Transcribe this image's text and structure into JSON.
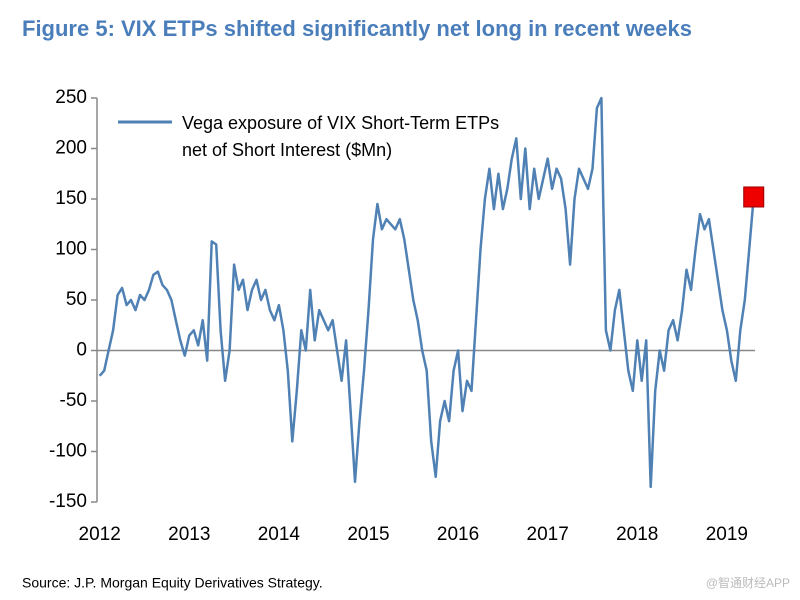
{
  "chart_data": {
    "type": "line",
    "title": "Figure 5: VIX ETPs shifted significantly net long in recent weeks",
    "source": "Source: J.P. Morgan Equity Derivatives Strategy.",
    "watermark": "@智通财经APP",
    "x": [
      2012.0,
      2012.05,
      2012.1,
      2012.15,
      2012.2,
      2012.25,
      2012.3,
      2012.35,
      2012.4,
      2012.45,
      2012.5,
      2012.55,
      2012.6,
      2012.65,
      2012.7,
      2012.75,
      2012.8,
      2012.85,
      2012.9,
      2012.95,
      2013.0,
      2013.05,
      2013.1,
      2013.15,
      2013.2,
      2013.25,
      2013.3,
      2013.35,
      2013.4,
      2013.45,
      2013.5,
      2013.55,
      2013.6,
      2013.65,
      2013.7,
      2013.75,
      2013.8,
      2013.85,
      2013.9,
      2013.95,
      2014.0,
      2014.05,
      2014.1,
      2014.15,
      2014.2,
      2014.25,
      2014.3,
      2014.35,
      2014.4,
      2014.45,
      2014.5,
      2014.55,
      2014.6,
      2014.65,
      2014.7,
      2014.75,
      2014.8,
      2014.85,
      2014.9,
      2014.95,
      2015.0,
      2015.05,
      2015.1,
      2015.15,
      2015.2,
      2015.25,
      2015.3,
      2015.35,
      2015.4,
      2015.45,
      2015.5,
      2015.55,
      2015.6,
      2015.65,
      2015.7,
      2015.75,
      2015.8,
      2015.85,
      2015.9,
      2015.95,
      2016.0,
      2016.05,
      2016.1,
      2016.15,
      2016.2,
      2016.25,
      2016.3,
      2016.35,
      2016.4,
      2016.45,
      2016.5,
      2016.55,
      2016.6,
      2016.65,
      2016.7,
      2016.75,
      2016.8,
      2016.85,
      2016.9,
      2016.95,
      2017.0,
      2017.05,
      2017.1,
      2017.15,
      2017.2,
      2017.25,
      2017.3,
      2017.35,
      2017.4,
      2017.45,
      2017.5,
      2017.55,
      2017.6,
      2017.62,
      2017.65,
      2017.7,
      2017.75,
      2017.8,
      2017.85,
      2017.9,
      2017.95,
      2018.0,
      2018.05,
      2018.1,
      2018.15,
      2018.2,
      2018.25,
      2018.3,
      2018.35,
      2018.4,
      2018.45,
      2018.5,
      2018.55,
      2018.6,
      2018.65,
      2018.7,
      2018.75,
      2018.8,
      2018.85,
      2018.9,
      2018.95,
      2019.0,
      2019.05,
      2019.1,
      2019.15,
      2019.2,
      2019.25,
      2019.3
    ],
    "series": [
      {
        "name": "Vega exposure of VIX Short-Term ETPs net of Short Interest ($Mn)",
        "color": "#4f81b4",
        "values": [
          -25,
          -20,
          0,
          20,
          55,
          62,
          45,
          50,
          40,
          55,
          50,
          60,
          75,
          78,
          65,
          60,
          50,
          30,
          10,
          -5,
          15,
          20,
          5,
          30,
          -10,
          108,
          105,
          20,
          -30,
          0,
          85,
          60,
          70,
          40,
          60,
          70,
          50,
          60,
          40,
          30,
          45,
          20,
          -20,
          -90,
          -40,
          20,
          0,
          60,
          10,
          40,
          30,
          20,
          30,
          0,
          -30,
          10,
          -60,
          -130,
          -70,
          -20,
          40,
          110,
          145,
          120,
          130,
          125,
          120,
          130,
          110,
          80,
          50,
          30,
          0,
          -20,
          -90,
          -125,
          -70,
          -50,
          -70,
          -20,
          0,
          -60,
          -30,
          -40,
          30,
          100,
          150,
          180,
          140,
          175,
          140,
          160,
          190,
          210,
          150,
          200,
          140,
          180,
          150,
          170,
          190,
          160,
          180,
          170,
          140,
          85,
          150,
          180,
          170,
          160,
          180,
          240,
          250,
          150,
          20,
          0,
          40,
          60,
          20,
          -20,
          -40,
          10,
          -30,
          10,
          -135,
          -40,
          0,
          -20,
          20,
          30,
          10,
          40,
          80,
          60,
          100,
          135,
          120,
          130,
          100,
          70,
          40,
          20,
          -10,
          -30,
          20,
          50,
          100,
          152
        ]
      }
    ],
    "marker": {
      "x": 2019.3,
      "y": 152,
      "color": "#ee0000"
    },
    "xlim": [
      2011.97,
      2019.37
    ],
    "xticks": [
      2012,
      2013,
      2014,
      2015,
      2016,
      2017,
      2018,
      2019
    ],
    "ylim": [
      -150,
      250
    ],
    "yticks": [
      -150,
      -100,
      -50,
      0,
      50,
      100,
      150,
      200,
      250
    ],
    "grid": false
  }
}
